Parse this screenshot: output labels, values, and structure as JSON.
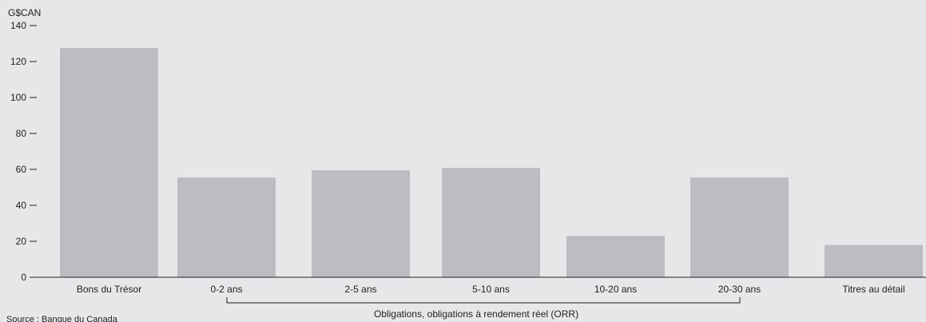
{
  "chart_data": {
    "type": "bar",
    "categories": [
      "Bons du Trésor",
      "0-2 ans",
      "2-5 ans",
      "5-10 ans",
      "10-20 ans",
      "20-30 ans",
      "Titres au détail"
    ],
    "values": [
      127.5,
      55.5,
      59.5,
      60.8,
      23.0,
      55.5,
      18.0
    ],
    "ylabel": "G$CAN",
    "ylim": [
      0,
      140
    ],
    "yticks": [
      0,
      20,
      40,
      60,
      80,
      100,
      120,
      140
    ],
    "grid": false,
    "bar_color": "#bcbdc0",
    "group_label": "Obligations, obligations à rendement réel (ORR)",
    "source": "Source : Banque du Canada"
  }
}
